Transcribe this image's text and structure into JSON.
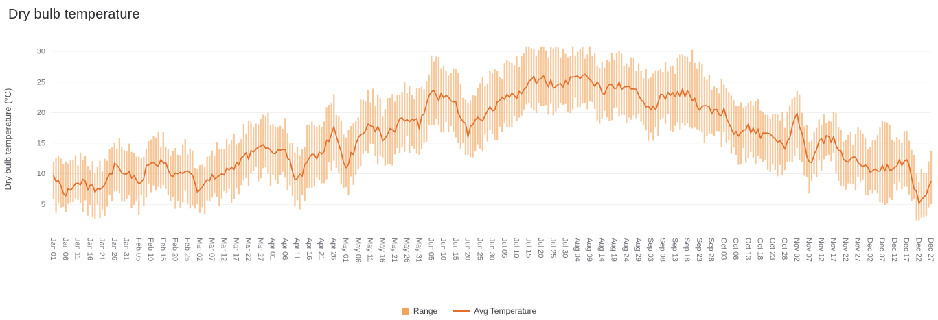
{
  "title": "Dry bulb temperature",
  "legend": {
    "range_label": "Range",
    "avg_label": "Avg Temperature"
  },
  "colors": {
    "range": "#f2a45c",
    "avg_line": "#e06f2c",
    "grid": "#ececec",
    "axis_text": "#71717a",
    "title_text": "#2e2e34",
    "background": "#ffffff"
  },
  "chart_data": {
    "type": "bar",
    "bar_style": "floating-range-plus-line",
    "title": "Dry bulb temperature",
    "xlabel": "",
    "ylabel": "Dry bulb temperature (°C)",
    "ylim": [
      0.3,
      31
    ],
    "yticks": [
      5,
      10,
      15,
      20,
      25,
      30
    ],
    "grid": "horizontal",
    "legend_position": "bottom-center",
    "x_resolution": "daily bars; labeled control points every 5 days",
    "days_per_category": 5,
    "jitter": {
      "range": 1.4,
      "avg": 0.8
    },
    "categories": [
      "Jan 01",
      "Jan 06",
      "Jan 11",
      "Jan 16",
      "Jan 21",
      "Jan 26",
      "Jan 31",
      "Feb 05",
      "Feb 10",
      "Feb 15",
      "Feb 20",
      "Feb 25",
      "Mar 02",
      "Mar 07",
      "Mar 12",
      "Mar 17",
      "Mar 22",
      "Mar 27",
      "Apr 01",
      "Apr 06",
      "Apr 11",
      "Apr 16",
      "Apr 21",
      "Apr 26",
      "May 01",
      "May 06",
      "May 11",
      "May 16",
      "May 21",
      "May 26",
      "May 31",
      "Jun 05",
      "Jun 10",
      "Jun 15",
      "Jun 20",
      "Jun 25",
      "Jun 30",
      "Jul 05",
      "Jul 10",
      "Jul 15",
      "Jul 20",
      "Jul 25",
      "Jul 30",
      "Aug 04",
      "Aug 09",
      "Aug 14",
      "Aug 19",
      "Aug 24",
      "Aug 29",
      "Sep 03",
      "Sep 08",
      "Sep 13",
      "Sep 18",
      "Sep 23",
      "Sep 28",
      "Oct 03",
      "Oct 08",
      "Oct 13",
      "Oct 18",
      "Oct 23",
      "Oct 28",
      "Nov 02",
      "Nov 07",
      "Nov 12",
      "Nov 17",
      "Nov 22",
      "Nov 27",
      "Dec 02",
      "Dec 07",
      "Dec 12",
      "Dec 17",
      "Dec 22",
      "Dec 27"
    ],
    "series": [
      {
        "name": "Range",
        "type": "range",
        "min": [
          5,
          3.5,
          5,
          4,
          3.5,
          7,
          6.5,
          4.5,
          8,
          7.5,
          5.5,
          6,
          3.5,
          5.5,
          6,
          7,
          8.5,
          10.5,
          9,
          9,
          4.5,
          8,
          9,
          12,
          7,
          11,
          14,
          11.5,
          13,
          15,
          13.5,
          18.5,
          18,
          17,
          12.5,
          14.5,
          16.5,
          17.5,
          18.5,
          20.5,
          21,
          20,
          20.5,
          22,
          21,
          19,
          20,
          19.5,
          19,
          15.5,
          18.5,
          18,
          19,
          16.5,
          16,
          15.5,
          12.5,
          13,
          12,
          11,
          10,
          14.5,
          8,
          11.5,
          12,
          7.5,
          8.5,
          6.5,
          6,
          7,
          8.5,
          2,
          4
        ],
        "max": [
          13,
          11,
          12.5,
          12,
          10.5,
          15.5,
          14,
          12.5,
          16,
          15.5,
          13.5,
          14.5,
          10.5,
          14,
          15,
          16,
          17.5,
          19.5,
          18,
          18.5,
          13,
          17.5,
          19,
          22,
          15.5,
          20.5,
          23,
          20.5,
          22.5,
          24,
          23,
          28.5,
          27.5,
          26.5,
          21,
          24,
          26,
          27,
          28.5,
          30,
          30.5,
          29.5,
          30,
          30.5,
          30,
          28,
          29,
          28.5,
          28,
          24.5,
          27.5,
          27.5,
          30,
          27.5,
          24.5,
          24,
          21,
          22,
          21,
          19.5,
          18.5,
          23.5,
          15.5,
          19,
          19.5,
          15.5,
          16.5,
          14.5,
          19.5,
          15,
          16.5,
          9,
          13
        ]
      },
      {
        "name": "Avg Temperature",
        "type": "line",
        "values": [
          9.5,
          7,
          8.5,
          8,
          7,
          11,
          10,
          8.5,
          12,
          11.5,
          9.5,
          10.5,
          7,
          9.5,
          10.5,
          11.5,
          13,
          15,
          13.5,
          13.5,
          8.5,
          12.5,
          13.5,
          17,
          11,
          15.5,
          18.5,
          16,
          17.5,
          19.5,
          18,
          23,
          22.5,
          21.5,
          16.5,
          19,
          21,
          22,
          23,
          25,
          25.5,
          24.5,
          25,
          26.5,
          25.5,
          23.5,
          24.5,
          24,
          23.5,
          20,
          23,
          22.5,
          23.5,
          21,
          20.5,
          20,
          16.5,
          17.5,
          16.5,
          15.5,
          14,
          19.5,
          11.5,
          15.5,
          16,
          11.5,
          12.5,
          10.5,
          11,
          11,
          12.5,
          5.5,
          8
        ]
      }
    ]
  }
}
